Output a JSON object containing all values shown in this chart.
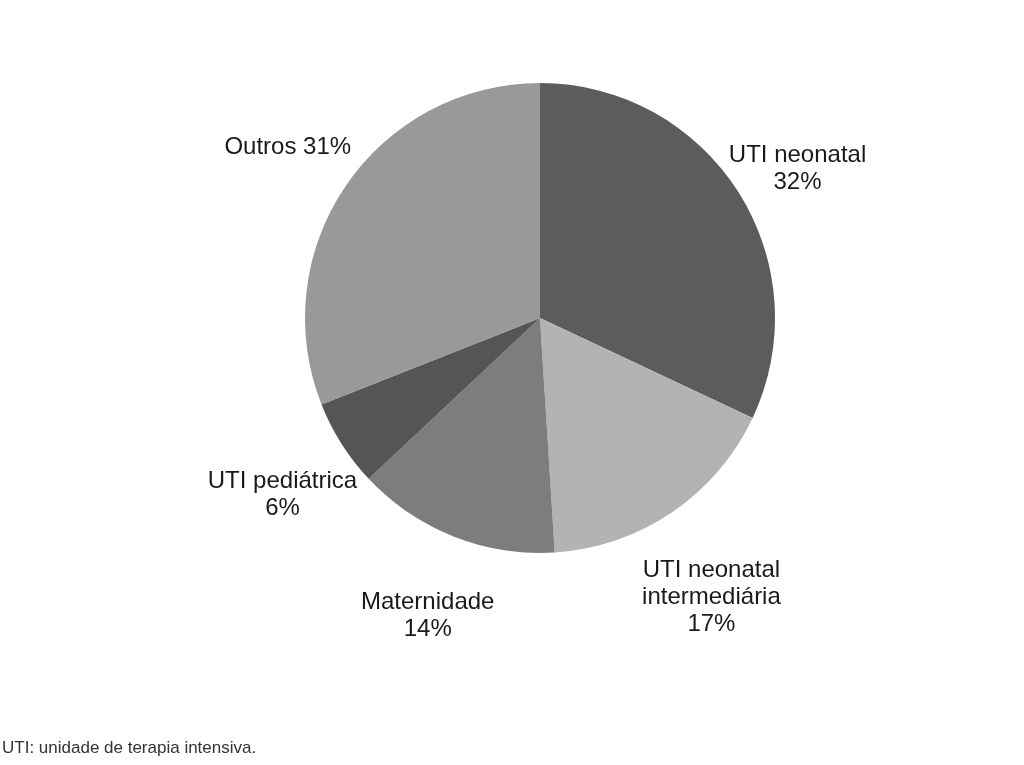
{
  "chart_data": {
    "type": "pie",
    "categories": [
      "UTI neonatal",
      "UTI neonatal intermediária",
      "Maternidade",
      "UTI pediátrica",
      "Outros"
    ],
    "values": [
      32,
      17,
      14,
      6,
      31
    ],
    "colors": [
      "#5c5c5c",
      "#b3b3b3",
      "#7d7d7d",
      "#555555",
      "#999999"
    ],
    "value_labels": [
      "32%",
      "17%",
      "14%",
      "6%",
      "31%"
    ],
    "annotations": [
      "UTI: unidade de terapia intensiva."
    ]
  }
}
